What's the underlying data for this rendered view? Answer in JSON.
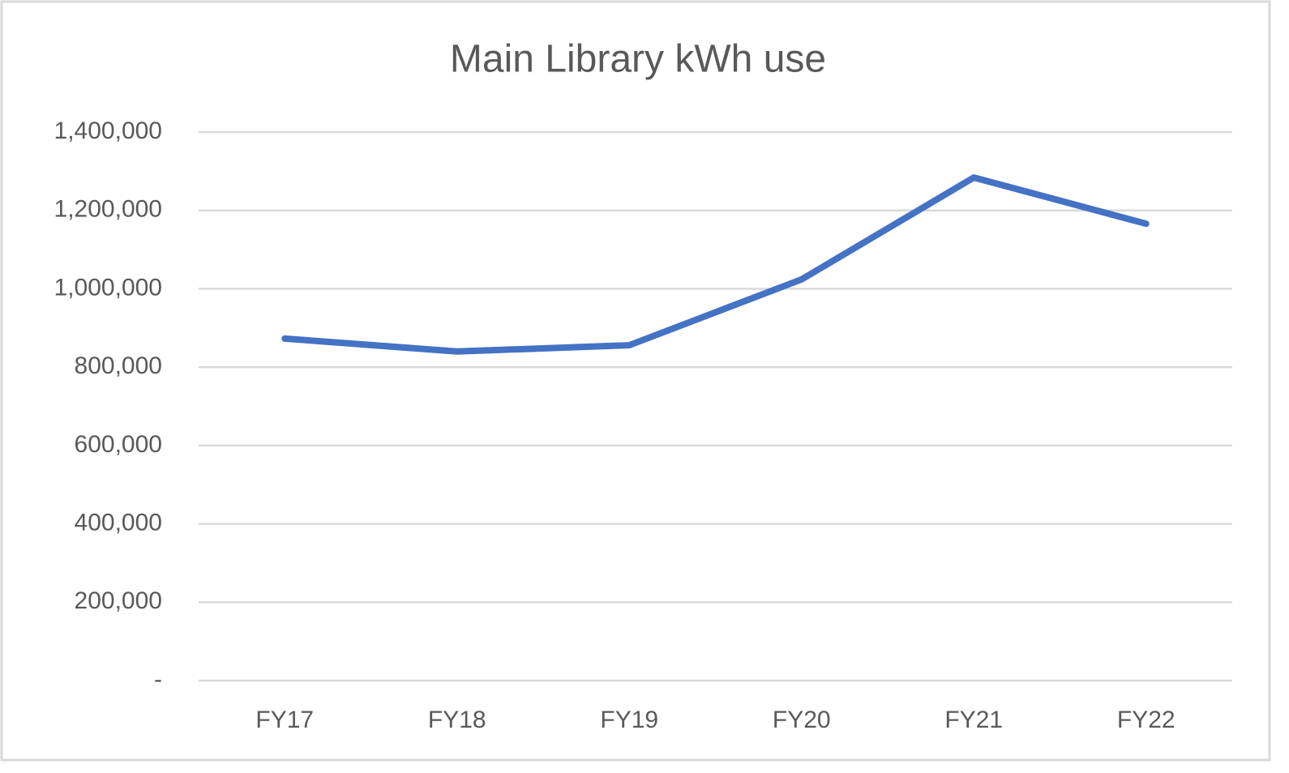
{
  "chart_data": {
    "type": "line",
    "title": "Main Library kWh use",
    "categories": [
      "FY17",
      "FY18",
      "FY19",
      "FY20",
      "FY21",
      "FY22"
    ],
    "values": [
      873000,
      840000,
      856000,
      1024000,
      1284000,
      1166000
    ],
    "color": "#4472c4",
    "ylim": [
      0,
      1400000
    ],
    "yticks": [
      {
        "value": 0,
        "label": "-"
      },
      {
        "value": 200000,
        "label": "200,000"
      },
      {
        "value": 400000,
        "label": "400,000"
      },
      {
        "value": 600000,
        "label": "600,000"
      },
      {
        "value": 800000,
        "label": "800,000"
      },
      {
        "value": 1000000,
        "label": "1,000,000"
      },
      {
        "value": 1200000,
        "label": "1,200,000"
      },
      {
        "value": 1400000,
        "label": "1,400,000"
      }
    ],
    "grid": true
  }
}
